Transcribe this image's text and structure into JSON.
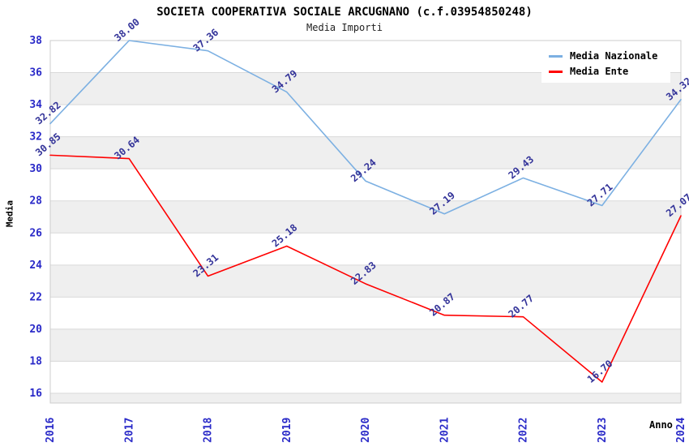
{
  "chart_data": {
    "type": "line",
    "title": "SOCIETA COOPERATIVA SOCIALE ARCUGNANO (c.f.03954850248)",
    "subtitle": "Media Importi",
    "xlabel": "Anno",
    "ylabel": "Media",
    "categories": [
      "2016",
      "2017",
      "2018",
      "2019",
      "2020",
      "2021",
      "2022",
      "2023",
      "2024"
    ],
    "series": [
      {
        "name": "Media Nazionale",
        "color": "#7cb0e2",
        "values": [
          32.82,
          38.0,
          37.36,
          34.79,
          29.24,
          27.19,
          29.43,
          27.71,
          34.32
        ]
      },
      {
        "name": "Media Ente",
        "color": "#ff0000",
        "values": [
          30.85,
          30.64,
          23.31,
          25.18,
          22.83,
          20.87,
          20.77,
          16.7,
          27.07
        ]
      }
    ],
    "ylim": [
      16,
      38
    ],
    "ytick_step": 2,
    "yticks": [
      16,
      18,
      20,
      22,
      24,
      26,
      28,
      30,
      32,
      34,
      36,
      38
    ],
    "legend_position": "top-right",
    "grid": "horizontal-bands",
    "colors": {
      "tick_label": "#2a2ac8",
      "data_label": "#333399",
      "band_gray": "#efefef",
      "band_white": "#ffffff",
      "grid_line": "#d9d9d9",
      "plot_border": "#cccccc",
      "title": "#000000"
    }
  }
}
